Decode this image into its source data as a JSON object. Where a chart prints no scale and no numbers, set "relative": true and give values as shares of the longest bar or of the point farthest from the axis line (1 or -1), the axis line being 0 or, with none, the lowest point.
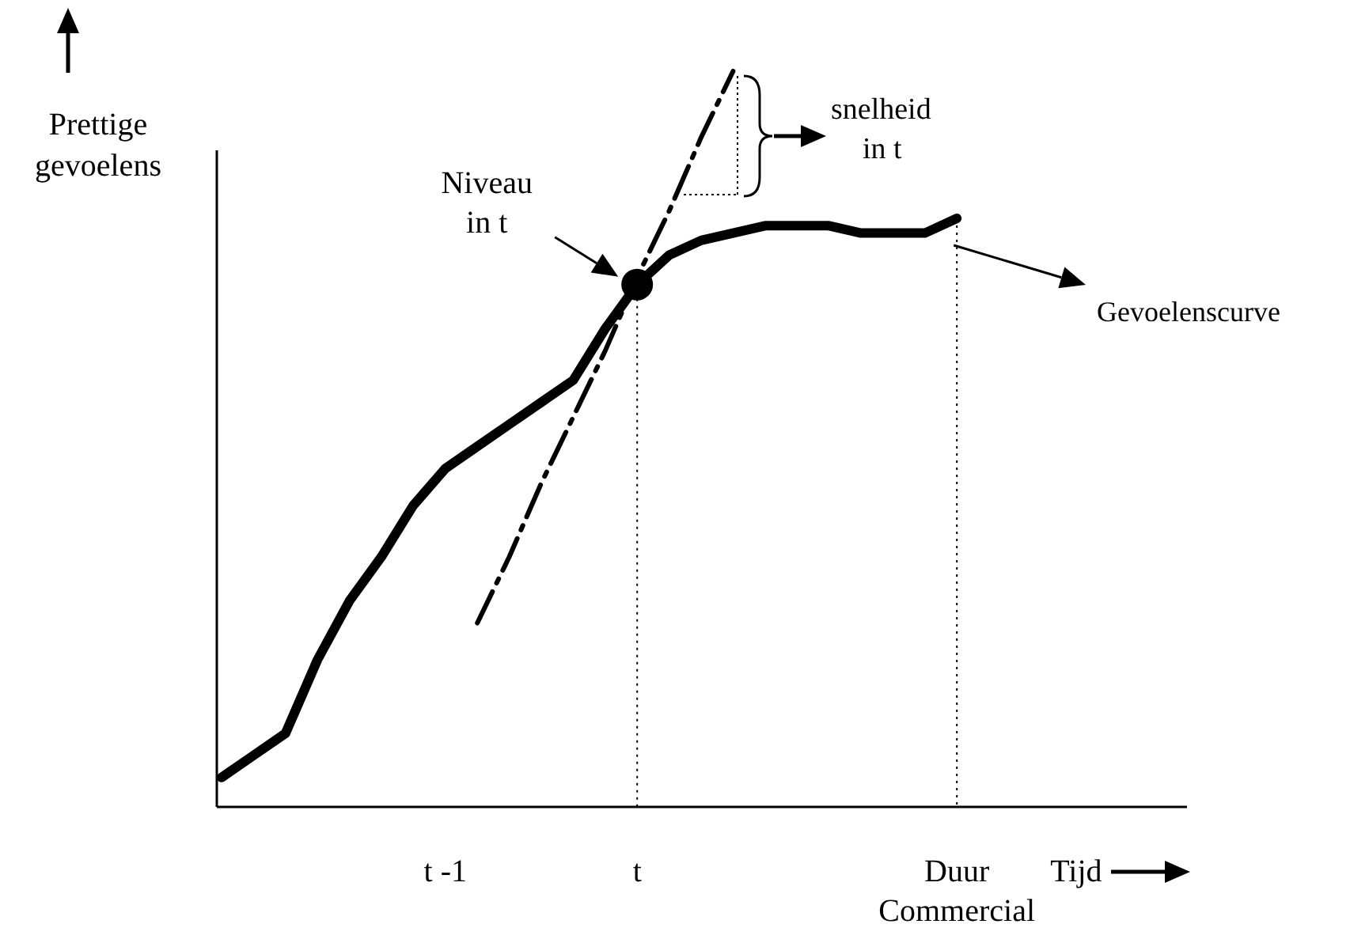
{
  "chart_data": {
    "type": "line",
    "relative": true,
    "xlabel": "Tijd",
    "ylabel": "Prettige gevoelens",
    "categories": [
      null,
      null,
      null,
      null,
      null,
      null,
      null,
      "t -1",
      null,
      null,
      null,
      null,
      null,
      "t",
      null,
      null,
      null,
      null,
      null,
      null,
      null,
      null,
      null,
      "Duur Commercial"
    ],
    "series": [
      {
        "name": "Gevoelenscurve",
        "color": "#000000",
        "line_style": "solid",
        "values": [
          0.04,
          0.07,
          0.1,
          0.2,
          0.28,
          0.34,
          0.41,
          0.46,
          0.49,
          0.52,
          0.55,
          0.58,
          0.65,
          0.71,
          0.75,
          0.77,
          0.78,
          0.79,
          0.79,
          0.79,
          0.78,
          0.78,
          0.78,
          0.8
        ]
      },
      {
        "color": "#000000",
        "line_style": "dashed",
        "values": [
          null,
          null,
          null,
          null,
          null,
          null,
          null,
          null,
          0.25,
          0.34,
          0.44,
          0.53,
          0.62,
          0.72,
          0.81,
          0.91,
          1.0,
          null,
          null,
          null,
          null,
          null,
          null,
          null
        ]
      },
      {
        "type": "scatter",
        "color": "#000000",
        "marker": "circle",
        "x": [
          "t"
        ],
        "values": [
          0.71
        ]
      }
    ],
    "ref_lines": [
      {
        "axis": "x",
        "value": "t",
        "line_style": "dotted"
      },
      {
        "axis": "x",
        "value": "Duur Commercial",
        "line_style": "dotted"
      }
    ],
    "annotations": [
      "Niveau in t",
      "snelheid in t"
    ],
    "grid": false
  }
}
